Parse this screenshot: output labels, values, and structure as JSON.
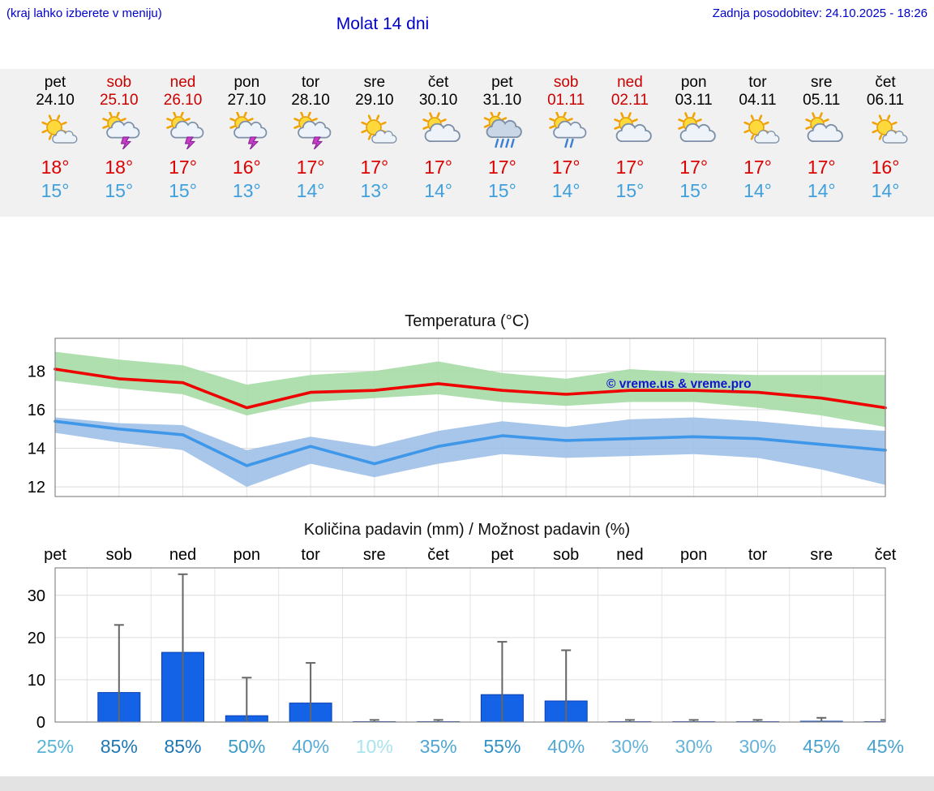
{
  "header": {
    "note": "(kraj lahko izberete v meniju)",
    "title": "Molat 14 dni",
    "last_update": "Zadnja posodobitev: 24.10.2025 - 18:26"
  },
  "colors": {
    "header_blue": "#0000cc",
    "weekend_red": "#cc0000",
    "temp_max_red": "#dd0000",
    "temp_min_blue": "#3fa0dd",
    "strip_bg": "#f1f1f1",
    "footer_bg": "#e3e3e3"
  },
  "days": [
    {
      "name": "pet",
      "date": "24.10",
      "weekend": false,
      "icon": "mostly-sunny",
      "tmax": "18°",
      "tmin": "15°"
    },
    {
      "name": "sob",
      "date": "25.10",
      "weekend": true,
      "icon": "thunderstorm",
      "tmax": "18°",
      "tmin": "15°"
    },
    {
      "name": "ned",
      "date": "26.10",
      "weekend": true,
      "icon": "thunderstorm",
      "tmax": "17°",
      "tmin": "15°"
    },
    {
      "name": "pon",
      "date": "27.10",
      "weekend": false,
      "icon": "thunderstorm",
      "tmax": "16°",
      "tmin": "13°"
    },
    {
      "name": "tor",
      "date": "28.10",
      "weekend": false,
      "icon": "thunderstorm",
      "tmax": "17°",
      "tmin": "14°"
    },
    {
      "name": "sre",
      "date": "29.10",
      "weekend": false,
      "icon": "mostly-sunny",
      "tmax": "17°",
      "tmin": "13°"
    },
    {
      "name": "čet",
      "date": "30.10",
      "weekend": false,
      "icon": "partly-cloudy",
      "tmax": "17°",
      "tmin": "14°"
    },
    {
      "name": "pet",
      "date": "31.10",
      "weekend": false,
      "icon": "rain",
      "tmax": "17°",
      "tmin": "15°"
    },
    {
      "name": "sob",
      "date": "01.11",
      "weekend": true,
      "icon": "light-rain",
      "tmax": "17°",
      "tmin": "14°"
    },
    {
      "name": "ned",
      "date": "02.11",
      "weekend": true,
      "icon": "partly-cloudy",
      "tmax": "17°",
      "tmin": "15°"
    },
    {
      "name": "pon",
      "date": "03.11",
      "weekend": false,
      "icon": "partly-cloudy",
      "tmax": "17°",
      "tmin": "15°"
    },
    {
      "name": "tor",
      "date": "04.11",
      "weekend": false,
      "icon": "mostly-sunny",
      "tmax": "17°",
      "tmin": "14°"
    },
    {
      "name": "sre",
      "date": "05.11",
      "weekend": false,
      "icon": "partly-cloudy",
      "tmax": "17°",
      "tmin": "14°"
    },
    {
      "name": "čet",
      "date": "06.11",
      "weekend": false,
      "icon": "mostly-sunny",
      "tmax": "16°",
      "tmin": "14°"
    }
  ],
  "chart_data": [
    {
      "type": "line",
      "title": "Temperatura (°C)",
      "x": [
        "24.10",
        "25.10",
        "26.10",
        "27.10",
        "28.10",
        "29.10",
        "30.10",
        "31.10",
        "01.11",
        "02.11",
        "03.11",
        "04.11",
        "05.11",
        "06.11"
      ],
      "series": [
        {
          "name": "max-temperature",
          "color": "#ee0000",
          "values": [
            18.1,
            17.6,
            17.4,
            16.1,
            16.9,
            17.0,
            17.35,
            17.0,
            16.8,
            17.0,
            17.0,
            16.9,
            16.6,
            16.1
          ],
          "band_color": "#a6dba6",
          "band_upper": [
            19.0,
            18.6,
            18.3,
            17.3,
            17.8,
            18.0,
            18.5,
            17.9,
            17.6,
            18.1,
            17.9,
            17.8,
            17.8,
            17.8
          ],
          "band_lower": [
            17.5,
            17.1,
            16.8,
            15.7,
            16.4,
            16.6,
            16.8,
            16.4,
            16.2,
            16.4,
            16.4,
            16.1,
            15.7,
            15.1
          ]
        },
        {
          "name": "min-temperature",
          "color": "#3e97e8",
          "values": [
            15.4,
            15.0,
            14.7,
            13.1,
            14.1,
            13.2,
            14.1,
            14.65,
            14.4,
            14.5,
            14.6,
            14.5,
            14.2,
            13.9
          ],
          "band_color": "#9fc0e8",
          "band_upper": [
            15.6,
            15.3,
            15.2,
            13.9,
            14.6,
            14.1,
            14.9,
            15.4,
            15.1,
            15.5,
            15.6,
            15.4,
            15.1,
            14.9
          ],
          "band_lower": [
            14.8,
            14.3,
            13.9,
            12.0,
            13.2,
            12.5,
            13.2,
            13.7,
            13.5,
            13.6,
            13.7,
            13.5,
            12.9,
            12.1
          ]
        }
      ],
      "ylim": [
        11.5,
        19.7
      ],
      "yticks": [
        12,
        14,
        16,
        18
      ],
      "grid": true,
      "watermark": "© vreme.us & vreme.pro",
      "watermark_color": "#1414cc"
    },
    {
      "type": "bar",
      "title": "Količina padavin (mm) / Možnost padavin (%)",
      "categories": [
        "pet",
        "sob",
        "ned",
        "pon",
        "tor",
        "sre",
        "čet",
        "pet",
        "sob",
        "ned",
        "pon",
        "tor",
        "sre",
        "čet"
      ],
      "values": [
        0,
        7,
        16.5,
        1.5,
        4.5,
        0.1,
        0.1,
        6.5,
        5,
        0.1,
        0.1,
        0.1,
        0.2,
        0.1
      ],
      "whisker_max": [
        0,
        23,
        35,
        10.5,
        14,
        0.5,
        0.5,
        19,
        17,
        0.5,
        0.5,
        0.5,
        1,
        0.5
      ],
      "bar_color": "#1463e6",
      "bar_border": "#0b3fb0",
      "whisker_color": "#666666",
      "ylim": [
        0,
        36.5
      ],
      "yticks": [
        0,
        10,
        20,
        30
      ],
      "grid": true,
      "percents": [
        {
          "label": "25%",
          "color": "#55b4d8"
        },
        {
          "label": "85%",
          "color": "#1d77b4"
        },
        {
          "label": "85%",
          "color": "#1d77b4"
        },
        {
          "label": "50%",
          "color": "#3b9cc9"
        },
        {
          "label": "40%",
          "color": "#55aad5"
        },
        {
          "label": "10%",
          "color": "#a9e4ec"
        },
        {
          "label": "35%",
          "color": "#4fa6d2"
        },
        {
          "label": "55%",
          "color": "#3392c4"
        },
        {
          "label": "40%",
          "color": "#55aad5"
        },
        {
          "label": "30%",
          "color": "#64b2d8"
        },
        {
          "label": "30%",
          "color": "#64b2d8"
        },
        {
          "label": "30%",
          "color": "#64b2d8"
        },
        {
          "label": "45%",
          "color": "#47a2ce"
        },
        {
          "label": "45%",
          "color": "#47a2ce"
        }
      ]
    }
  ]
}
